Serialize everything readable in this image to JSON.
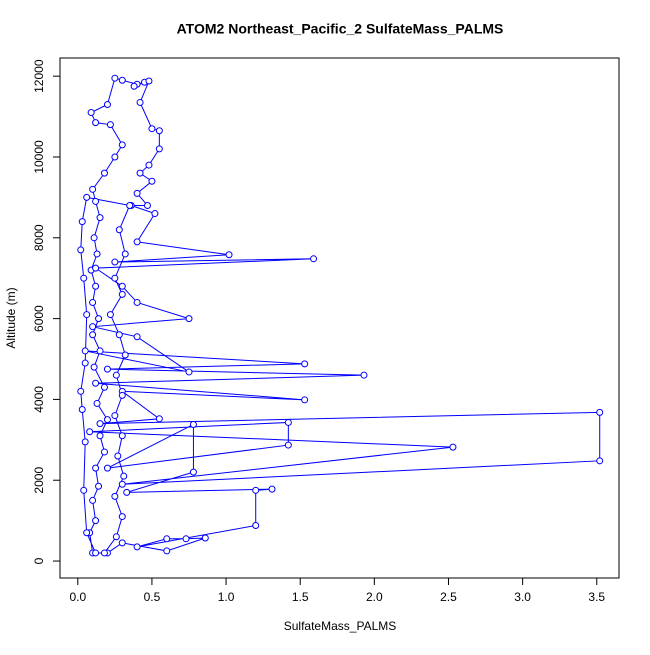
{
  "chart_data": {
    "type": "line",
    "title": "ATOM2 Northeast_Pacific_2 SulfateMass_PALMS",
    "xlabel": "SulfateMass_PALMS",
    "ylabel": "Altitude (m)",
    "color": "#0000ff",
    "x": [
      0.1,
      0.08,
      0.12,
      0.1,
      0.14,
      0.12,
      0.18,
      0.15,
      0.2,
      0.13,
      0.18,
      0.11,
      0.15,
      0.1,
      0.14,
      0.1,
      0.12,
      0.09,
      0.13,
      0.11,
      0.15,
      0.12,
      0.1,
      0.18,
      0.25,
      0.3,
      0.22,
      0.12,
      0.09,
      0.2,
      0.25,
      0.3,
      0.4,
      0.45,
      0.38,
      0.48,
      0.42,
      0.5,
      0.55,
      0.55,
      0.48,
      0.42,
      0.5,
      0.4,
      0.47,
      0.36,
      0.52,
      0.4,
      1.02,
      0.25,
      1.59,
      0.12,
      0.3,
      0.4,
      0.75,
      0.1,
      0.4,
      0.75,
      0.05,
      1.53,
      0.2,
      1.93,
      0.12,
      1.53,
      0.3,
      0.55,
      0.15,
      3.52,
      3.52,
      0.3,
      2.53,
      0.08,
      1.42,
      1.42,
      0.2,
      0.78,
      0.78,
      0.33,
      1.31,
      1.2,
      1.2,
      0.4,
      0.6,
      0.73,
      0.86,
      0.6,
      0.3,
      0.2,
      0.12,
      0.06,
      0.04,
      0.05,
      0.03,
      0.02,
      0.05,
      0.06,
      0.04,
      0.02,
      0.03,
      0.06,
      0.35,
      0.28,
      0.32,
      0.25,
      0.3,
      0.22,
      0.28,
      0.32,
      0.26,
      0.3,
      0.25,
      0.3,
      0.27,
      0.31,
      0.25,
      0.3,
      0.26,
      0.18
    ],
    "values": [
      200,
      700,
      1000,
      1500,
      1850,
      2300,
      2700,
      3100,
      3500,
      3900,
      4300,
      4800,
      5200,
      5600,
      6000,
      6400,
      6800,
      7200,
      7600,
      8000,
      8500,
      8900,
      9200,
      9600,
      10000,
      10300,
      10800,
      10850,
      11100,
      11300,
      11950,
      11900,
      11800,
      11850,
      11750,
      11880,
      11350,
      10700,
      10650,
      10200,
      9800,
      9600,
      9400,
      9100,
      8800,
      8800,
      8600,
      7900,
      7580,
      7400,
      7480,
      7250,
      6800,
      6400,
      6000,
      5800,
      5550,
      4680,
      5200,
      4880,
      4750,
      4600,
      4400,
      3990,
      4200,
      3520,
      3400,
      3680,
      2480,
      1900,
      2820,
      3200,
      3430,
      2870,
      2300,
      3380,
      2200,
      1700,
      1780,
      1750,
      880,
      350,
      550,
      550,
      570,
      250,
      450,
      200,
      200,
      700,
      1750,
      2950,
      3750,
      4200,
      4900,
      6100,
      7000,
      7700,
      8400,
      9000,
      8800,
      8200,
      7600,
      7000,
      6600,
      6100,
      5600,
      5100,
      4600,
      4100,
      3600,
      3100,
      2600,
      2100,
      1600,
      1100,
      600,
      200
    ],
    "xlim": [
      -0.12,
      3.65
    ],
    "ylim": [
      -420,
      12450
    ],
    "xticks": [
      {
        "value": 0,
        "label": "0.0"
      },
      0.5,
      {
        "value": 1,
        "label": "1.0"
      },
      1.5,
      {
        "value": 2,
        "label": "2.0"
      },
      2.5,
      {
        "value": 3,
        "label": "3.0"
      },
      3.5
    ],
    "yticks": [
      0,
      2000,
      4000,
      6000,
      8000,
      10000,
      12000
    ]
  }
}
